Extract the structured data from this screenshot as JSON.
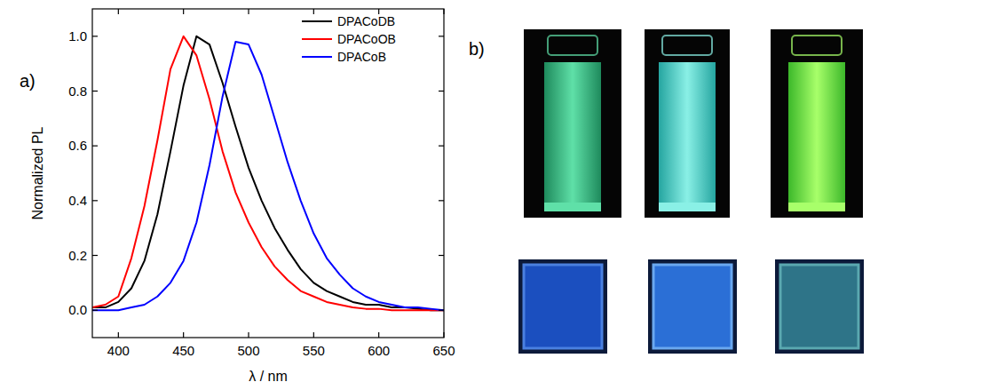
{
  "chart_data": {
    "type": "line",
    "panel_label": "a)",
    "x_label": "λ / nm",
    "y_label": "Normalized PL",
    "x": [
      380,
      390,
      400,
      410,
      420,
      430,
      440,
      450,
      460,
      470,
      480,
      490,
      500,
      510,
      520,
      530,
      540,
      550,
      560,
      570,
      580,
      590,
      600,
      610,
      620,
      630,
      640,
      650
    ],
    "series": [
      {
        "name": "DPACoDB",
        "color": "#000000",
        "values": [
          0.01,
          0.01,
          0.03,
          0.08,
          0.18,
          0.35,
          0.58,
          0.82,
          1.0,
          0.97,
          0.83,
          0.67,
          0.52,
          0.4,
          0.3,
          0.22,
          0.15,
          0.1,
          0.07,
          0.05,
          0.03,
          0.02,
          0.02,
          0.01,
          0.01,
          0.005,
          0.0,
          0.0
        ]
      },
      {
        "name": "DPACoOB",
        "color": "#ff0000",
        "values": [
          0.01,
          0.02,
          0.05,
          0.19,
          0.38,
          0.62,
          0.88,
          1.0,
          0.93,
          0.77,
          0.58,
          0.43,
          0.32,
          0.23,
          0.16,
          0.11,
          0.07,
          0.05,
          0.03,
          0.02,
          0.01,
          0.005,
          0.005,
          0.0,
          0.0,
          0.0,
          0.0,
          0.0
        ]
      },
      {
        "name": "DPACoB",
        "color": "#0000ff",
        "values": [
          0.0,
          0.0,
          0.0,
          0.01,
          0.02,
          0.05,
          0.1,
          0.18,
          0.32,
          0.53,
          0.78,
          0.98,
          0.97,
          0.86,
          0.7,
          0.54,
          0.4,
          0.28,
          0.19,
          0.13,
          0.08,
          0.05,
          0.03,
          0.02,
          0.01,
          0.01,
          0.005,
          0.0
        ]
      }
    ],
    "xlim": [
      380,
      650
    ],
    "xticks": [
      400,
      450,
      500,
      550,
      600,
      650
    ],
    "ylim": [
      -0.1,
      1.1
    ],
    "yticks": [
      {
        "value": 0,
        "label": "0.0"
      },
      0.2,
      0.4,
      0.6,
      0.8,
      {
        "value": 1,
        "label": "1.0"
      }
    ],
    "grid": false,
    "legend": "upper right"
  },
  "photo_panel": {
    "label": "b)"
  }
}
